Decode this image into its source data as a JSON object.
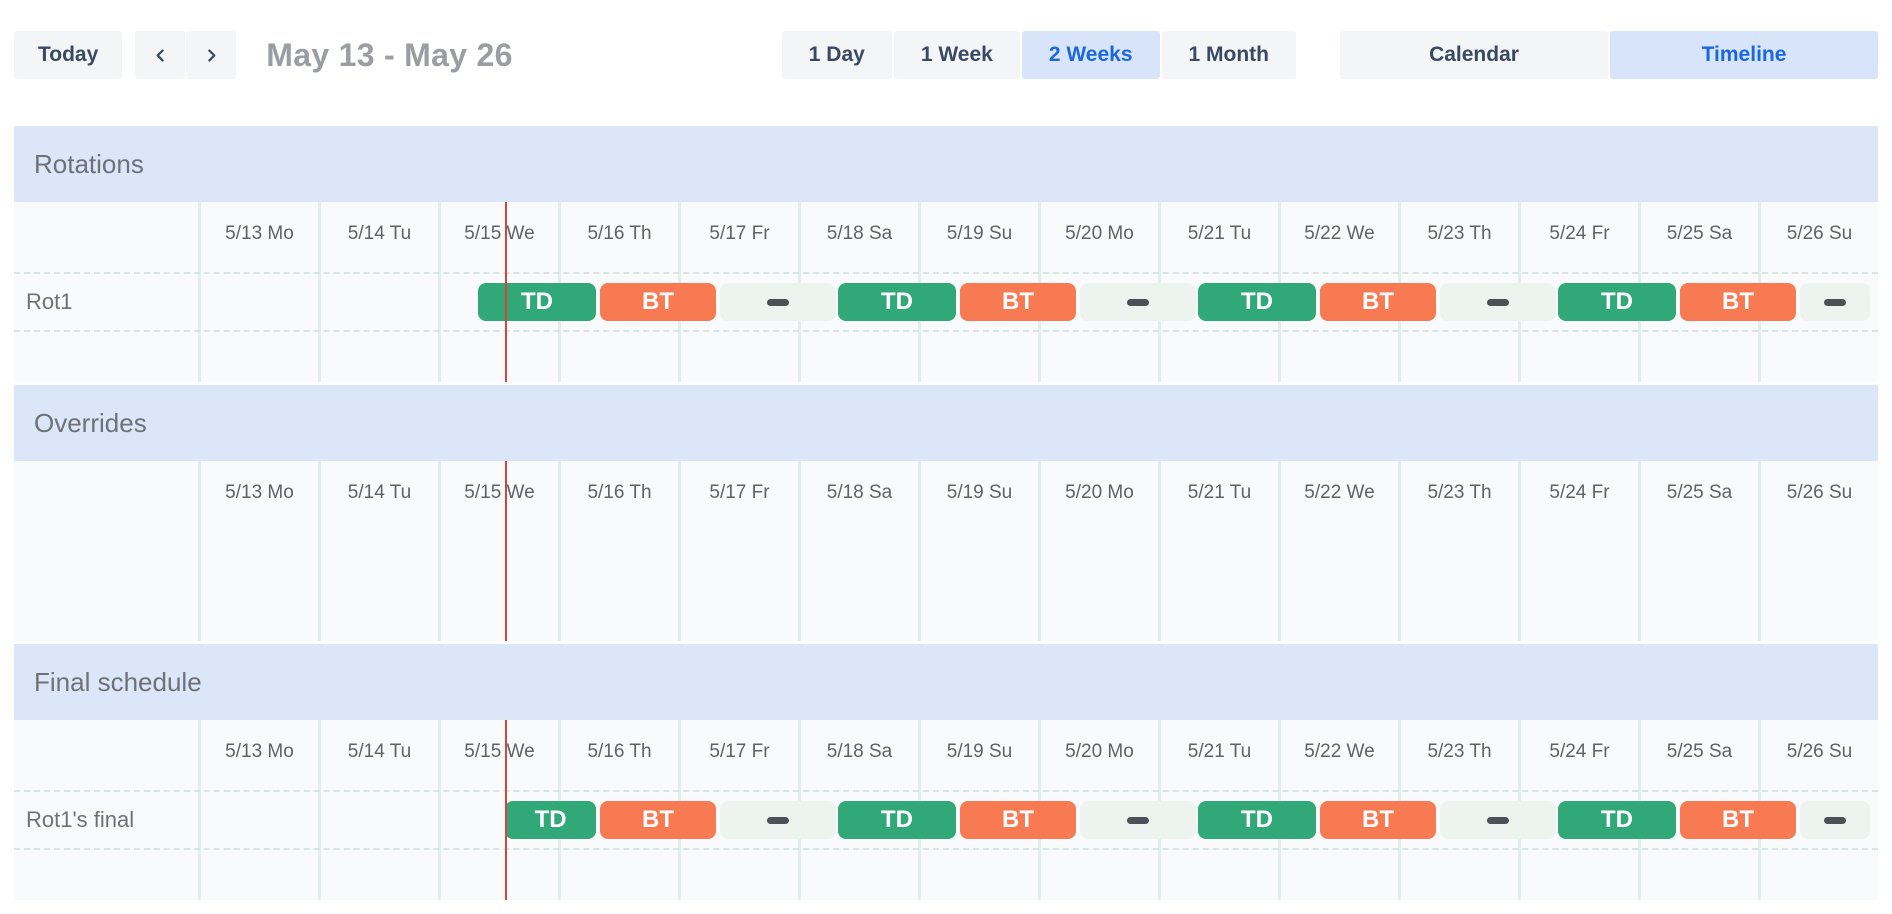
{
  "toolbar": {
    "today": "Today",
    "nav": {
      "prev_icon": "chevron-left",
      "next_icon": "chevron-right"
    },
    "date_range": "May 13 - May 26",
    "zoom_options": [
      {
        "label": "1 Day",
        "selected": false
      },
      {
        "label": "1 Week",
        "selected": false
      },
      {
        "label": "2 Weeks",
        "selected": true
      },
      {
        "label": "1 Month",
        "selected": false
      }
    ],
    "view_options": [
      {
        "label": "Calendar",
        "selected": false
      },
      {
        "label": "Timeline",
        "selected": true
      }
    ]
  },
  "timeline": {
    "days": [
      "5/13 Mo",
      "5/14 Tu",
      "5/15 We",
      "5/16 Th",
      "5/17 Fr",
      "5/18 Sa",
      "5/19 Su",
      "5/20 Mo",
      "5/21 Tu",
      "5/22 We",
      "5/23 Th",
      "5/24 Fr",
      "5/25 Sa",
      "5/26 Su"
    ],
    "total_days": 14,
    "now_marker_day": 2.56,
    "colors": {
      "td_green": "#31a877",
      "bt_orange": "#f87a53",
      "gap_strip": "#edf4f0",
      "gap_dash": "#4b5156",
      "now_line": "#d8443a"
    }
  },
  "sections": [
    {
      "title": "Rotations",
      "rows": [
        {
          "label": "Rot1",
          "blocks": [
            {
              "type": "shift",
              "label": "TD",
              "color": "td_green",
              "start_day": 2.333,
              "end_day": 3.317
            },
            {
              "type": "shift",
              "label": "BT",
              "color": "bt_orange",
              "start_day": 3.35,
              "end_day": 4.317
            },
            {
              "type": "gap",
              "start_day": 4.35,
              "end_day": 5.317
            },
            {
              "type": "shift",
              "label": "TD",
              "color": "td_green",
              "start_day": 5.333,
              "end_day": 6.317
            },
            {
              "type": "shift",
              "label": "BT",
              "color": "bt_orange",
              "start_day": 6.35,
              "end_day": 7.317
            },
            {
              "type": "gap",
              "start_day": 7.35,
              "end_day": 8.317
            },
            {
              "type": "shift",
              "label": "TD",
              "color": "td_green",
              "start_day": 8.333,
              "end_day": 9.317
            },
            {
              "type": "shift",
              "label": "BT",
              "color": "bt_orange",
              "start_day": 9.35,
              "end_day": 10.317
            },
            {
              "type": "gap",
              "start_day": 10.35,
              "end_day": 11.317
            },
            {
              "type": "shift",
              "label": "TD",
              "color": "td_green",
              "start_day": 11.333,
              "end_day": 12.317
            },
            {
              "type": "shift",
              "label": "BT",
              "color": "bt_orange",
              "start_day": 12.35,
              "end_day": 13.317
            },
            {
              "type": "gap",
              "start_day": 13.35,
              "end_day": 13.93
            }
          ]
        }
      ]
    },
    {
      "title": "Overrides",
      "rows": []
    },
    {
      "title": "Final schedule",
      "rows": [
        {
          "label": "Rot1's final",
          "blocks": [
            {
              "type": "shift",
              "label": "TD",
              "color": "td_green",
              "start_day": 2.56,
              "end_day": 3.317
            },
            {
              "type": "shift",
              "label": "BT",
              "color": "bt_orange",
              "start_day": 3.35,
              "end_day": 4.317
            },
            {
              "type": "gap",
              "start_day": 4.35,
              "end_day": 5.317
            },
            {
              "type": "shift",
              "label": "TD",
              "color": "td_green",
              "start_day": 5.333,
              "end_day": 6.317
            },
            {
              "type": "shift",
              "label": "BT",
              "color": "bt_orange",
              "start_day": 6.35,
              "end_day": 7.317
            },
            {
              "type": "gap",
              "start_day": 7.35,
              "end_day": 8.317
            },
            {
              "type": "shift",
              "label": "TD",
              "color": "td_green",
              "start_day": 8.333,
              "end_day": 9.317
            },
            {
              "type": "shift",
              "label": "BT",
              "color": "bt_orange",
              "start_day": 9.35,
              "end_day": 10.317
            },
            {
              "type": "gap",
              "start_day": 10.35,
              "end_day": 11.317
            },
            {
              "type": "shift",
              "label": "TD",
              "color": "td_green",
              "start_day": 11.333,
              "end_day": 12.317
            },
            {
              "type": "shift",
              "label": "BT",
              "color": "bt_orange",
              "start_day": 12.35,
              "end_day": 13.317
            },
            {
              "type": "gap",
              "start_day": 13.35,
              "end_day": 13.93
            }
          ]
        }
      ]
    }
  ]
}
